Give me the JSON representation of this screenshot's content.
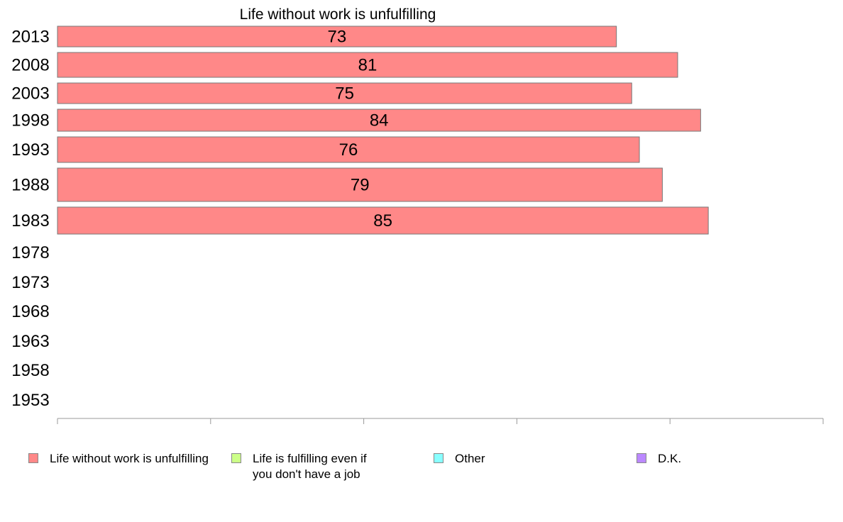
{
  "chart_data": {
    "type": "bar",
    "orientation": "horizontal",
    "title": "Life without work is unfulfilling",
    "categories": [
      "2013",
      "2008",
      "2003",
      "1998",
      "1993",
      "1988",
      "1983",
      "1978",
      "1973",
      "1968",
      "1963",
      "1958",
      "1953"
    ],
    "series": [
      {
        "name": "Life without work is unfulfilling",
        "color": "#ff8888",
        "values": [
          73,
          81,
          75,
          84,
          76,
          79,
          85,
          null,
          null,
          null,
          null,
          null,
          null
        ]
      }
    ],
    "xlim": [
      0,
      100
    ],
    "xticks": [
      0,
      20,
      40,
      60,
      80,
      100
    ],
    "xlabel": "",
    "ylabel": "",
    "grid": false,
    "legend_position": "bottom",
    "legend": [
      {
        "label": "Life without work is unfulfilling",
        "color": "#ff8888"
      },
      {
        "label": "Life is fulfilling even if\nyou don't have a job",
        "color": "#ccff88"
      },
      {
        "label": "Other",
        "color": "#88ffff"
      },
      {
        "label": "D.K.",
        "color": "#bb88ff"
      }
    ]
  }
}
